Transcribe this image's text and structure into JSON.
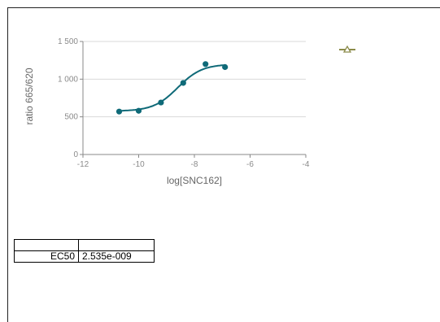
{
  "chart_data": {
    "type": "scatter",
    "xlabel": "log[SNC162]",
    "ylabel": "ratio 665/620",
    "xlim": [
      -12,
      -4
    ],
    "ylim": [
      0,
      1500
    ],
    "x_ticks": [
      "-12",
      "-10",
      "-8",
      "-6",
      "-4"
    ],
    "y_ticks": [
      "0",
      "500",
      "1 000",
      "1 500"
    ],
    "grid": "horizontal",
    "colors": {
      "series": "#0f6a78",
      "legend_marker": "#8b8b4a"
    },
    "series": [
      {
        "points": [
          {
            "x": -10.7,
            "y": 570
          },
          {
            "x": -10.0,
            "y": 580
          },
          {
            "x": -9.2,
            "y": 690
          },
          {
            "x": -8.4,
            "y": 950
          },
          {
            "x": -7.6,
            "y": 1200
          },
          {
            "x": -6.9,
            "y": 1160
          }
        ],
        "fit": {
          "model": "sigmoid",
          "bottom": 575,
          "top": 1200,
          "log_ec50": -8.596,
          "hill": 1.0,
          "x_range": [
            -10.7,
            -6.9
          ]
        }
      }
    ]
  },
  "results_table": {
    "header": [
      "",
      ""
    ],
    "rows": [
      {
        "label": "EC50",
        "value": "2.535e-009"
      }
    ]
  }
}
